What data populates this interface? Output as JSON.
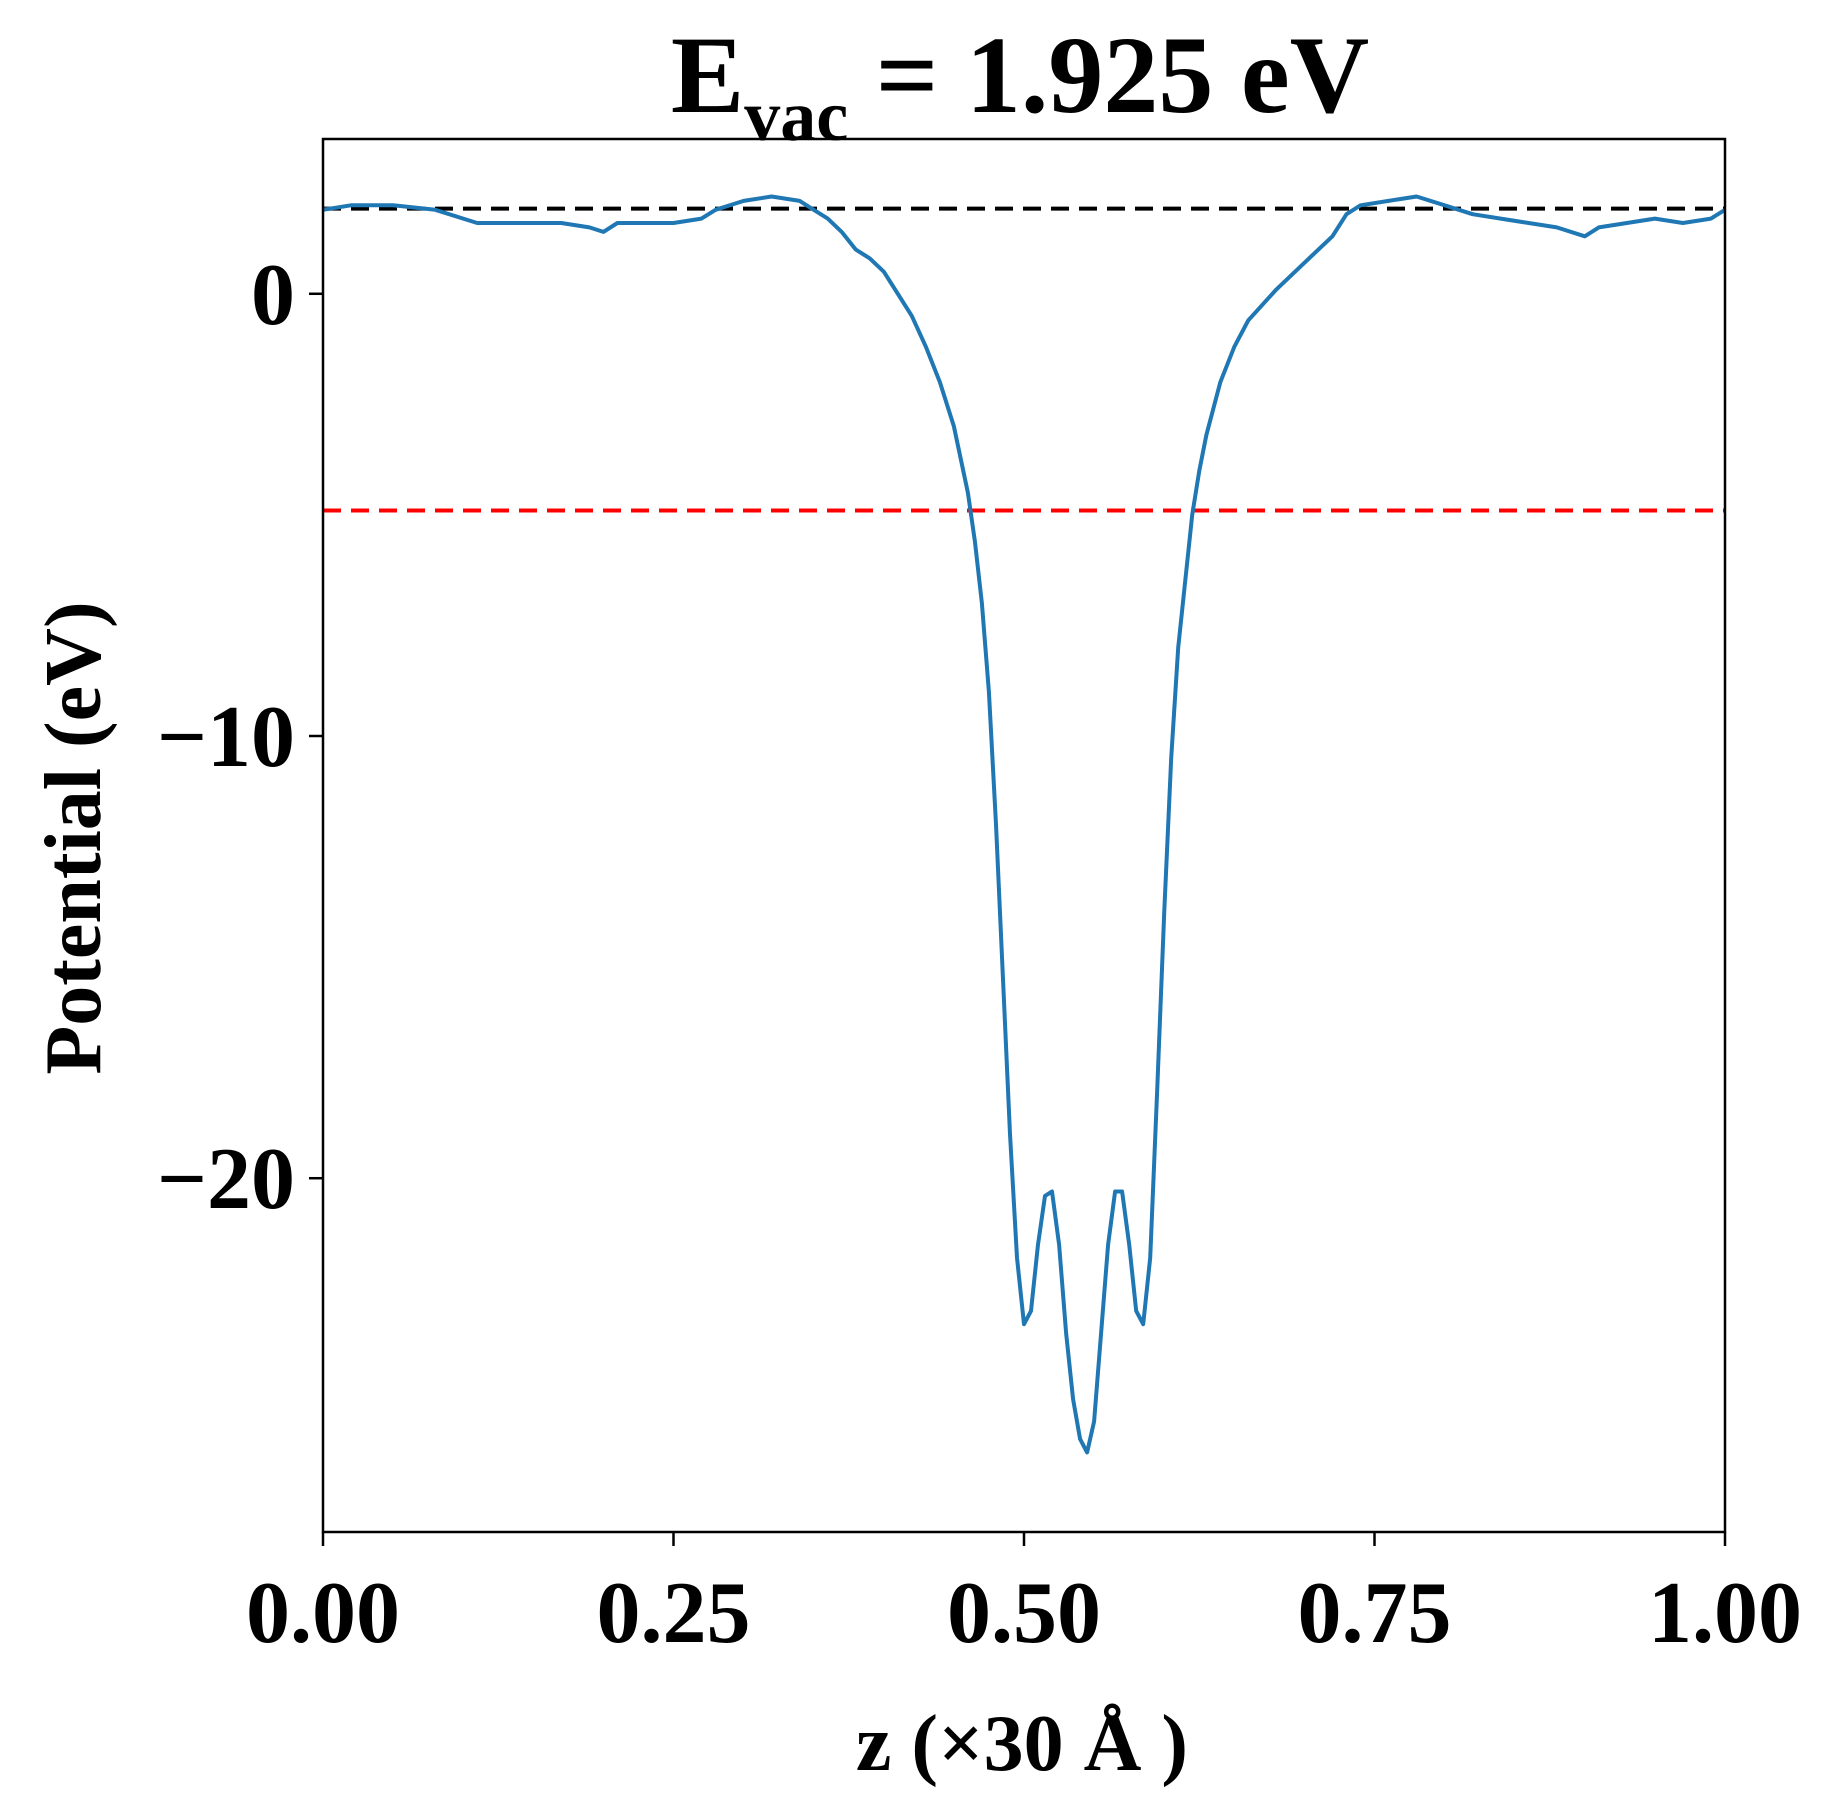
{
  "chart_data": {
    "type": "line",
    "title": {
      "main": "E",
      "subscript": "vac",
      "rest": " = 1.925 eV"
    },
    "xlabel": "z (×30 Å )",
    "ylabel": "Potential (eV)",
    "xlim": [
      0.0,
      1.0
    ],
    "ylim": [
      -28.0,
      3.5
    ],
    "x_ticks": [
      {
        "value": 0.0,
        "label": "0.00"
      },
      {
        "value": 0.25,
        "label": "0.25"
      },
      {
        "value": 0.5,
        "label": "0.50"
      },
      {
        "value": 0.75,
        "label": "0.75"
      },
      {
        "value": 1.0,
        "label": "1.00"
      }
    ],
    "y_ticks": [
      {
        "value": 0,
        "label": "0"
      },
      {
        "value": -10,
        "label": "−10"
      },
      {
        "value": -20,
        "label": "−20"
      }
    ],
    "grid": false,
    "legend": "none",
    "series": [
      {
        "color": "#1f77b4",
        "x": [
          0.0,
          0.02,
          0.05,
          0.08,
          0.1,
          0.11,
          0.13,
          0.15,
          0.17,
          0.19,
          0.2,
          0.21,
          0.22,
          0.23,
          0.25,
          0.27,
          0.28,
          0.3,
          0.32,
          0.34,
          0.35,
          0.36,
          0.37,
          0.38,
          0.39,
          0.4,
          0.42,
          0.43,
          0.44,
          0.45,
          0.46,
          0.465,
          0.47,
          0.475,
          0.48,
          0.485,
          0.49,
          0.495,
          0.5,
          0.505,
          0.51,
          0.515,
          0.52,
          0.525,
          0.53,
          0.535,
          0.54,
          0.545,
          0.55,
          0.555,
          0.56,
          0.565,
          0.57,
          0.575,
          0.58,
          0.585,
          0.59,
          0.595,
          0.6,
          0.605,
          0.61,
          0.615,
          0.62,
          0.625,
          0.63,
          0.64,
          0.65,
          0.66,
          0.68,
          0.7,
          0.72,
          0.73,
          0.74,
          0.76,
          0.78,
          0.8,
          0.82,
          0.84,
          0.86,
          0.88,
          0.9,
          0.91,
          0.93,
          0.95,
          0.97,
          0.99,
          1.0
        ],
        "values": [
          1.9,
          2.0,
          2.0,
          1.9,
          1.7,
          1.6,
          1.6,
          1.6,
          1.6,
          1.5,
          1.4,
          1.6,
          1.6,
          1.6,
          1.6,
          1.7,
          1.9,
          2.1,
          2.2,
          2.1,
          1.9,
          1.7,
          1.4,
          1.0,
          0.8,
          0.5,
          -0.5,
          -1.2,
          -2.0,
          -3.0,
          -4.5,
          -5.6,
          -7.0,
          -9.0,
          -12.0,
          -15.5,
          -19.0,
          -21.8,
          -23.3,
          -23.0,
          -21.5,
          -20.4,
          -20.3,
          -21.5,
          -23.5,
          -25.0,
          -25.9,
          -26.2,
          -25.5,
          -23.5,
          -21.5,
          -20.3,
          -20.3,
          -21.5,
          -23.0,
          -23.3,
          -21.8,
          -18.0,
          -14.0,
          -10.5,
          -8.0,
          -6.5,
          -5.0,
          -4.0,
          -3.2,
          -2.0,
          -1.2,
          -0.6,
          0.1,
          0.7,
          1.3,
          1.8,
          2.0,
          2.1,
          2.2,
          2.0,
          1.8,
          1.7,
          1.6,
          1.5,
          1.3,
          1.5,
          1.6,
          1.7,
          1.6,
          1.7,
          1.9
        ]
      }
    ],
    "hlines": [
      {
        "y": 1.925,
        "color": "#000000",
        "style": "dashed"
      },
      {
        "y": -4.9,
        "color": "#ff0000",
        "style": "dashed"
      }
    ]
  }
}
